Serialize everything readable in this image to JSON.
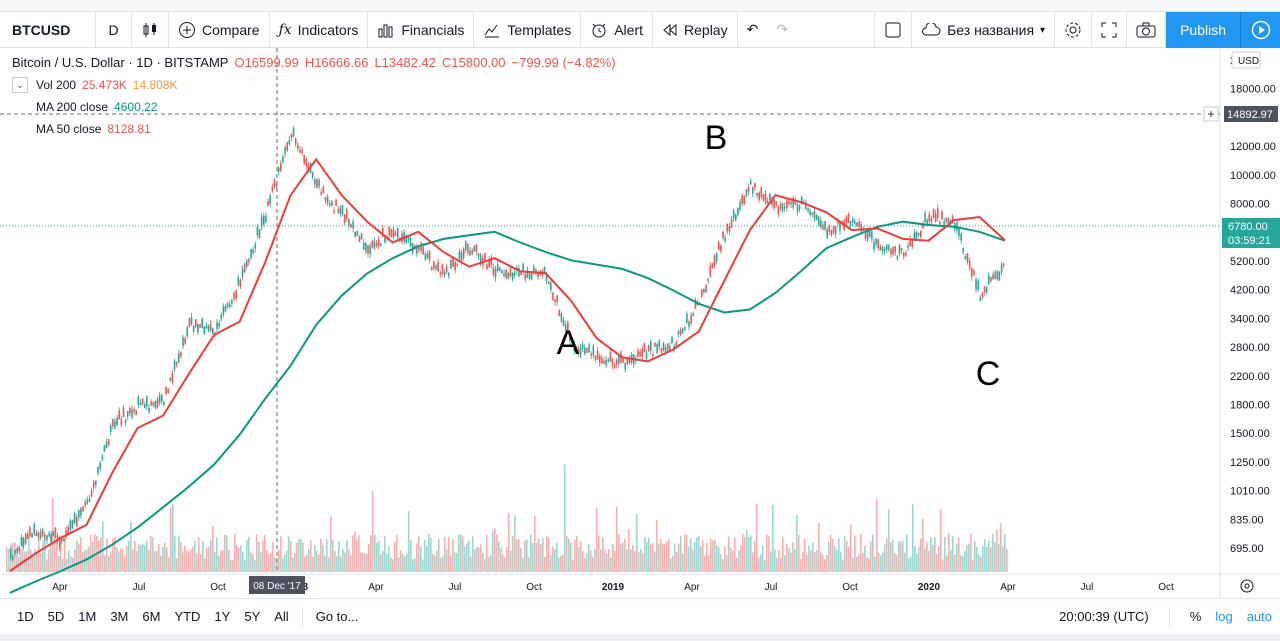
{
  "toolbar": {
    "symbol": "BTCUSD",
    "interval": "D",
    "compare": "Compare",
    "indicators": "Indicators",
    "financials": "Financials",
    "templates": "Templates",
    "alert": "Alert",
    "replay": "Replay",
    "layout_name": "Без названия",
    "publish": "Publish"
  },
  "legend": {
    "title": "Bitcoin / U.S. Dollar · 1D · BITSTAMP",
    "open": "O16599.99",
    "high": "H16666.66",
    "low": "L13482.42",
    "close": "C15800.00",
    "change": "−799.99 (−4.82%)",
    "vol_label": "Vol 200",
    "vol_v1": "25.473K",
    "vol_v2": "14.808K",
    "ma200_label": "MA 200 close",
    "ma200_value": "4600.22",
    "ma50_label": "MA 50 close",
    "ma50_value": "8128.81"
  },
  "chart_data": {
    "type": "line",
    "title": "Bitcoin / U.S. Dollar · 1D · BITSTAMP",
    "yscale": "log",
    "ylim": [
      1000,
      22000
    ],
    "ytick_labels": [
      "2",
      "18000.00",
      "14000.00",
      "12000.00",
      "10000.00",
      "8000.00",
      "6200.00",
      "5200.00",
      "4200.00",
      "3400.00",
      "2800.00",
      "2200.00",
      "1800.00",
      "1500.00",
      "1250.00",
      "1010.00",
      "835.00",
      "695.00"
    ],
    "xtick_labels": [
      "Apr",
      "Jul",
      "Oct",
      "2018",
      "Apr",
      "Jul",
      "Oct",
      "2019",
      "Apr",
      "Jul",
      "Oct",
      "2020",
      "Apr",
      "Jul",
      "Oct"
    ],
    "currency": "USD",
    "crosshair_price": "14892.97",
    "last_price": "6780.00",
    "countdown": "03:59:21",
    "crosshair_date": "08 Dec '17",
    "price": {
      "name": "BTCUSD",
      "x": [
        "2017-01",
        "2017-02",
        "2017-03",
        "2017-04",
        "2017-05",
        "2017-06",
        "2017-07",
        "2017-08",
        "2017-09",
        "2017-10",
        "2017-11",
        "2017-12",
        "2018-01",
        "2018-02",
        "2018-03",
        "2018-04",
        "2018-05",
        "2018-06",
        "2018-07",
        "2018-08",
        "2018-09",
        "2018-10",
        "2018-11",
        "2018-12",
        "2019-01",
        "2019-02",
        "2019-03",
        "2019-04",
        "2019-05",
        "2019-06",
        "2019-07",
        "2019-08",
        "2019-09",
        "2019-10",
        "2019-11",
        "2019-12",
        "2020-01",
        "2020-02",
        "2020-03",
        "2020-04"
      ],
      "values": [
        950,
        1150,
        1050,
        1350,
        2300,
        2600,
        2700,
        4500,
        4300,
        6000,
        9500,
        16500,
        11500,
        9500,
        7500,
        8500,
        7500,
        6300,
        7600,
        6500,
        6400,
        6300,
        4000,
        3600,
        3500,
        3800,
        4000,
        5200,
        8300,
        11500,
        10000,
        10200,
        8500,
        9200,
        7600,
        7300,
        9300,
        9000,
        5500,
        6780
      ]
    },
    "series": [
      {
        "name": "MA 200 close",
        "values": [
          760,
          820,
          880,
          950,
          1050,
          1180,
          1350,
          1550,
          1800,
          2200,
          2800,
          3500,
          4600,
          5600,
          6500,
          7200,
          7800,
          8200,
          8400,
          8600,
          8000,
          7500,
          7100,
          6900,
          6700,
          6300,
          5800,
          5300,
          5000,
          5100,
          5700,
          6600,
          7700,
          8300,
          8900,
          9200,
          9000,
          8900,
          8600,
          8100
        ]
      },
      {
        "name": "MA 50 close",
        "values": [
          880,
          990,
          1100,
          1200,
          1700,
          2300,
          2500,
          3300,
          4300,
          4700,
          7000,
          11000,
          14000,
          11000,
          9200,
          8000,
          8600,
          7500,
          6800,
          7200,
          6600,
          6500,
          5400,
          4200,
          3700,
          3600,
          3900,
          4400,
          6200,
          8700,
          11000,
          10500,
          9800,
          8700,
          8800,
          8200,
          8100,
          9300,
          9500,
          8129
        ]
      }
    ],
    "annotations": [
      "A",
      "B",
      "C"
    ]
  }
}
